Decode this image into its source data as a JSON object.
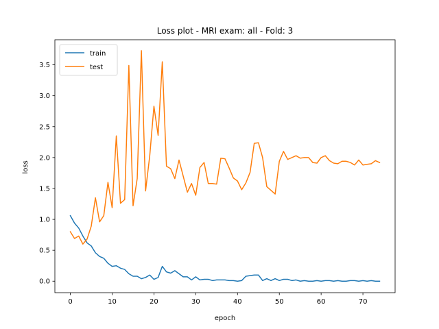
{
  "chart_data": {
    "type": "line",
    "title": "Loss plot - MRI exam: all - Fold: 3",
    "xlabel": "epoch",
    "ylabel": "loss",
    "xlim": [
      -3.7,
      77.7
    ],
    "ylim": [
      -0.186,
      3.906
    ],
    "xticks": [
      0,
      10,
      20,
      30,
      40,
      50,
      60,
      70
    ],
    "xtick_labels": [
      "0",
      "10",
      "20",
      "30",
      "40",
      "50",
      "60",
      "70"
    ],
    "yticks": [
      0.0,
      0.5,
      1.0,
      1.5,
      2.0,
      2.5,
      3.0,
      3.5
    ],
    "ytick_labels": [
      "0.0",
      "0.5",
      "1.0",
      "1.5",
      "2.0",
      "2.5",
      "3.0",
      "3.5"
    ],
    "grid": false,
    "legend_position": "top-left",
    "x": [
      0,
      1,
      2,
      3,
      4,
      5,
      6,
      7,
      8,
      9,
      10,
      11,
      12,
      13,
      14,
      15,
      16,
      17,
      18,
      19,
      20,
      21,
      22,
      23,
      24,
      25,
      26,
      27,
      28,
      29,
      30,
      31,
      32,
      33,
      34,
      35,
      36,
      37,
      38,
      39,
      40,
      41,
      42,
      43,
      44,
      45,
      46,
      47,
      48,
      49,
      50,
      51,
      52,
      53,
      54,
      55,
      56,
      57,
      58,
      59,
      60,
      61,
      62,
      63,
      64,
      65,
      66,
      67,
      68,
      69,
      70,
      71,
      72,
      73,
      74
    ],
    "series": [
      {
        "name": "train",
        "color": "#1f77b4",
        "values": [
          1.06,
          0.94,
          0.86,
          0.73,
          0.62,
          0.57,
          0.46,
          0.4,
          0.37,
          0.29,
          0.24,
          0.25,
          0.21,
          0.19,
          0.12,
          0.08,
          0.08,
          0.04,
          0.06,
          0.1,
          0.03,
          0.06,
          0.24,
          0.15,
          0.13,
          0.17,
          0.12,
          0.07,
          0.07,
          0.02,
          0.07,
          0.02,
          0.03,
          0.03,
          0.01,
          0.02,
          0.02,
          0.02,
          0.01,
          0.01,
          0.0,
          0.01,
          0.08,
          0.09,
          0.1,
          0.1,
          0.01,
          0.04,
          0.01,
          0.04,
          0.01,
          0.03,
          0.03,
          0.01,
          0.02,
          0.0,
          0.01,
          0.0,
          0.0,
          0.01,
          0.0,
          0.01,
          0.01,
          0.0,
          0.01,
          0.0,
          0.0,
          0.01,
          0.01,
          0.0,
          0.01,
          0.0,
          0.01,
          0.0,
          0.0
        ]
      },
      {
        "name": "test",
        "color": "#ff7f0e",
        "values": [
          0.8,
          0.69,
          0.73,
          0.6,
          0.68,
          0.89,
          1.35,
          0.96,
          1.06,
          1.6,
          1.19,
          2.35,
          1.26,
          1.32,
          3.49,
          1.22,
          1.66,
          3.73,
          1.46,
          2.03,
          2.83,
          2.36,
          3.55,
          1.86,
          1.82,
          1.66,
          1.96,
          1.7,
          1.44,
          1.58,
          1.39,
          1.84,
          1.92,
          1.58,
          1.58,
          1.57,
          1.99,
          1.98,
          1.83,
          1.67,
          1.62,
          1.48,
          1.59,
          1.76,
          2.23,
          2.24,
          2.0,
          1.53,
          1.47,
          1.41,
          1.94,
          2.1,
          1.97,
          2.0,
          2.03,
          1.99,
          2.0,
          2.0,
          1.92,
          1.91,
          2.0,
          2.03,
          1.95,
          1.91,
          1.9,
          1.94,
          1.94,
          1.92,
          1.88,
          1.96,
          1.88,
          1.89,
          1.9,
          1.95,
          1.92
        ]
      }
    ]
  }
}
